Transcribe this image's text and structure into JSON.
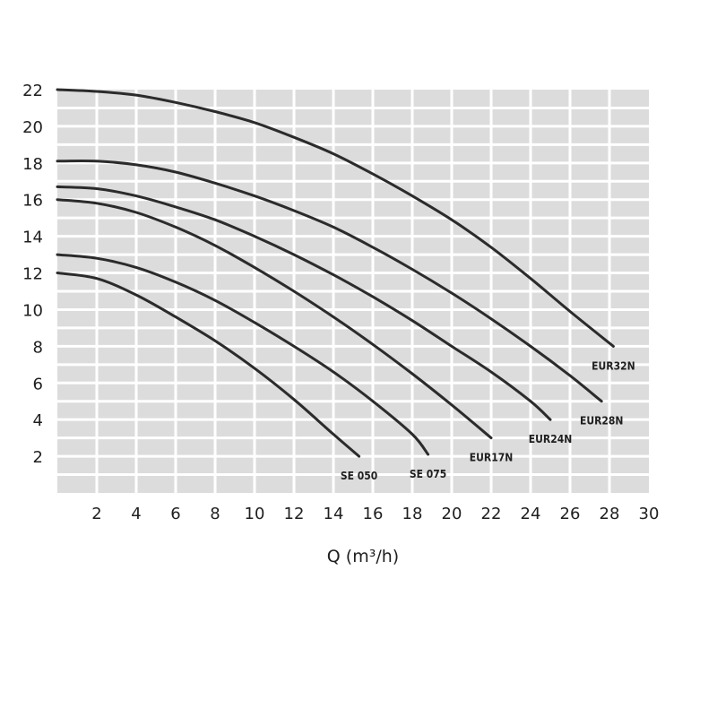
{
  "chart_data": {
    "type": "line",
    "title": "",
    "xlabel": "Q (m³/h)",
    "ylabel": "",
    "xlim": [
      0,
      30
    ],
    "ylim": [
      0,
      22
    ],
    "x_ticks": [
      "2",
      "4",
      "6",
      "8",
      "10",
      "12",
      "14",
      "16",
      "18",
      "20",
      "22",
      "24",
      "26",
      "28",
      "30"
    ],
    "y_ticks": [
      "2",
      "4",
      "6",
      "8",
      "10",
      "12",
      "14",
      "16",
      "18",
      "20",
      "22"
    ],
    "grid": true,
    "background": "#dcdcdc",
    "line_color": "#2b2b2b",
    "series": [
      {
        "name": "SE 050",
        "x": [
          0,
          2,
          4,
          6,
          8,
          10,
          12,
          14,
          15.3
        ],
        "y": [
          12,
          11.7,
          10.8,
          9.6,
          8.3,
          6.8,
          5.1,
          3.2,
          2
        ]
      },
      {
        "name": "SE 075",
        "x": [
          0,
          2,
          4,
          6,
          8,
          10,
          12,
          14,
          16,
          18,
          18.8
        ],
        "y": [
          13,
          12.8,
          12.3,
          11.5,
          10.5,
          9.3,
          8.0,
          6.6,
          5.0,
          3.2,
          2.1
        ]
      },
      {
        "name": "EUR17N",
        "x": [
          0,
          2,
          4,
          6,
          8,
          10,
          12,
          14,
          16,
          18,
          20,
          22
        ],
        "y": [
          16,
          15.8,
          15.3,
          14.5,
          13.5,
          12.3,
          11.0,
          9.6,
          8.1,
          6.5,
          4.8,
          3
        ]
      },
      {
        "name": "EUR24N",
        "x": [
          0,
          2,
          4,
          6,
          8,
          10,
          12,
          14,
          16,
          18,
          20,
          22,
          24,
          25
        ],
        "y": [
          16.7,
          16.6,
          16.2,
          15.6,
          14.9,
          14.0,
          13.0,
          11.9,
          10.7,
          9.4,
          8.0,
          6.6,
          5.0,
          4
        ]
      },
      {
        "name": "EUR28N",
        "x": [
          0,
          2,
          4,
          6,
          8,
          10,
          12,
          14,
          16,
          18,
          20,
          22,
          24,
          26,
          27.6
        ],
        "y": [
          18.1,
          18.1,
          17.9,
          17.5,
          16.9,
          16.2,
          15.4,
          14.5,
          13.4,
          12.2,
          10.9,
          9.5,
          8.0,
          6.4,
          5
        ]
      },
      {
        "name": "EUR32N",
        "x": [
          0,
          2,
          4,
          6,
          8,
          10,
          12,
          14,
          16,
          18,
          20,
          22,
          24,
          26,
          28.2
        ],
        "y": [
          22,
          21.9,
          21.7,
          21.3,
          20.8,
          20.2,
          19.4,
          18.5,
          17.4,
          16.2,
          14.9,
          13.4,
          11.7,
          9.9,
          8
        ]
      }
    ]
  }
}
